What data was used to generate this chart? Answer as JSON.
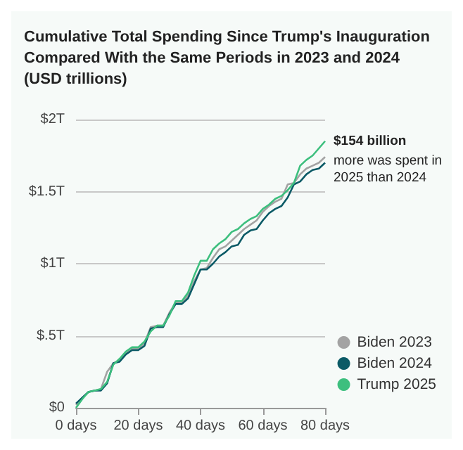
{
  "chart_data": {
    "type": "line",
    "title": "Cumulative Total Spending Since Trump's Inauguration\nCompared With the Same Periods in 2023 and 2024\n(USD trillions)",
    "x": [
      0,
      2,
      4,
      6,
      8,
      10,
      12,
      14,
      16,
      18,
      20,
      22,
      24,
      26,
      28,
      30,
      32,
      34,
      36,
      38,
      40,
      42,
      44,
      46,
      48,
      50,
      52,
      54,
      56,
      58,
      60,
      62,
      64,
      66,
      68,
      70,
      72,
      74,
      76,
      78,
      80
    ],
    "series": [
      {
        "name": "Biden 2023",
        "color": "#a3a3a3",
        "values": [
          0.02,
          0.07,
          0.11,
          0.12,
          0.13,
          0.25,
          0.31,
          0.33,
          0.38,
          0.41,
          0.41,
          0.45,
          0.56,
          0.57,
          0.57,
          0.66,
          0.73,
          0.73,
          0.78,
          0.88,
          0.96,
          0.97,
          1.04,
          1.1,
          1.12,
          1.16,
          1.2,
          1.24,
          1.27,
          1.3,
          1.36,
          1.4,
          1.43,
          1.45,
          1.55,
          1.56,
          1.62,
          1.66,
          1.68,
          1.7,
          1.74
        ]
      },
      {
        "name": "Biden 2024",
        "color": "#0b5a66",
        "values": [
          0.03,
          0.07,
          0.11,
          0.12,
          0.12,
          0.17,
          0.31,
          0.32,
          0.37,
          0.4,
          0.4,
          0.43,
          0.55,
          0.56,
          0.56,
          0.65,
          0.72,
          0.72,
          0.76,
          0.86,
          0.96,
          0.96,
          1.0,
          1.05,
          1.08,
          1.12,
          1.13,
          1.2,
          1.23,
          1.24,
          1.3,
          1.35,
          1.38,
          1.4,
          1.46,
          1.55,
          1.57,
          1.62,
          1.65,
          1.66,
          1.7
        ]
      },
      {
        "name": "Trump 2025",
        "color": "#3dbf7e",
        "values": [
          0.0,
          0.06,
          0.11,
          0.12,
          0.13,
          0.18,
          0.3,
          0.34,
          0.39,
          0.42,
          0.42,
          0.46,
          0.53,
          0.57,
          0.57,
          0.64,
          0.74,
          0.74,
          0.8,
          0.92,
          1.02,
          1.02,
          1.1,
          1.14,
          1.17,
          1.22,
          1.24,
          1.28,
          1.31,
          1.33,
          1.38,
          1.41,
          1.45,
          1.47,
          1.51,
          1.56,
          1.68,
          1.72,
          1.75,
          1.8,
          1.85
        ]
      }
    ],
    "xlim": [
      0,
      80
    ],
    "xticks": [
      {
        "value": 0,
        "label": "0 days"
      },
      {
        "value": 20,
        "label": "20 days"
      },
      {
        "value": 40,
        "label": "40 days"
      },
      {
        "value": 60,
        "label": "60 days"
      },
      {
        "value": 80,
        "label": "80 days"
      }
    ],
    "ylim": [
      0,
      2
    ],
    "yticks": [
      {
        "value": 0,
        "label": "$0"
      },
      {
        "value": 0.5,
        "label": "$.5T"
      },
      {
        "value": 1,
        "label": "$1T"
      },
      {
        "value": 1.5,
        "label": "$1.5T"
      },
      {
        "value": 2,
        "label": "$2T"
      }
    ],
    "grid": "y",
    "legend": "bottom right",
    "marker": "none",
    "line_style": "solid",
    "annotations": [
      {
        "text": "$154 billion",
        "x": 80,
        "y": 1.85
      },
      {
        "text": "more was spent in\n2025 than 2024",
        "x": 80,
        "y": 1.77
      }
    ]
  }
}
